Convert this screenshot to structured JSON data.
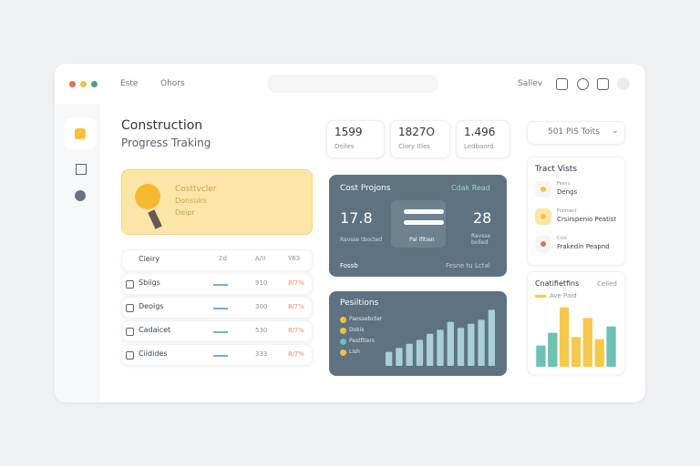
{
  "topbar": {
    "nav": [
      "Este",
      "Ohors"
    ],
    "user": "Sallev"
  },
  "header": {
    "title": "Construction",
    "subtitle": "Progress Traking"
  },
  "stats": [
    {
      "value": "1599",
      "label": "Deiles"
    },
    {
      "value": "1827O",
      "label": "Clory Itles"
    },
    {
      "value": "1.496",
      "label": "Ledbaord"
    }
  ],
  "dropdown": "501 PIS Toits",
  "banner": [
    "Costtvcler",
    "Donsuirs",
    "Deipr"
  ],
  "table": {
    "header": [
      "Cieiry",
      "2d",
      "A/II",
      "Y63"
    ],
    "rows": [
      [
        "Sbiigs",
        "910",
        "8/7%"
      ],
      [
        "Deoigs",
        "300",
        "8/7%"
      ],
      [
        "Cadaicet",
        "530",
        "8/7%"
      ],
      [
        "Ciidides",
        "333",
        "8/7%"
      ]
    ]
  },
  "cost_card": {
    "title": "Cost Projons",
    "link": "Cdak Read",
    "left_value": "17.8",
    "left_caption": "Ravsse tbocted",
    "center_caption": "Pal ifitien",
    "right_value": "28",
    "right_caption": "Ravsse bolled",
    "footer_left": "Fossb",
    "footer_right": "Fesne tu Lctal"
  },
  "positions_card": {
    "title": "Pesiltions",
    "legend": [
      "Paossebcter",
      "Dokis",
      "Pestfiters",
      "Lish"
    ],
    "chart": {
      "type": "bar",
      "values": [
        14,
        18,
        22,
        26,
        32,
        36,
        44,
        38,
        42,
        46,
        56
      ],
      "ylim": [
        0,
        60
      ],
      "color": "#a9cfd9"
    }
  },
  "visits": {
    "title": "Tract Vists",
    "items": [
      {
        "tag": "Fesnu",
        "label": "Dengs"
      },
      {
        "tag": "Fonmect",
        "label": "Crsirspenio Peatist"
      },
      {
        "tag": "Ccio",
        "label": "Frakedin Peapnd"
      }
    ]
  },
  "certs": {
    "title": "Cnatifietfins",
    "link": "Celied",
    "legend": "Ave Paid",
    "chart": {
      "type": "bar",
      "values": [
        20,
        32,
        56,
        28,
        46,
        26,
        38
      ],
      "ylim": [
        0,
        60
      ],
      "colors": [
        "#6cc3b1",
        "#6cc3b1",
        "#f5c94b",
        "#f5c94b",
        "#f5c94b",
        "#f5c94b",
        "#6cc3b1"
      ]
    }
  }
}
